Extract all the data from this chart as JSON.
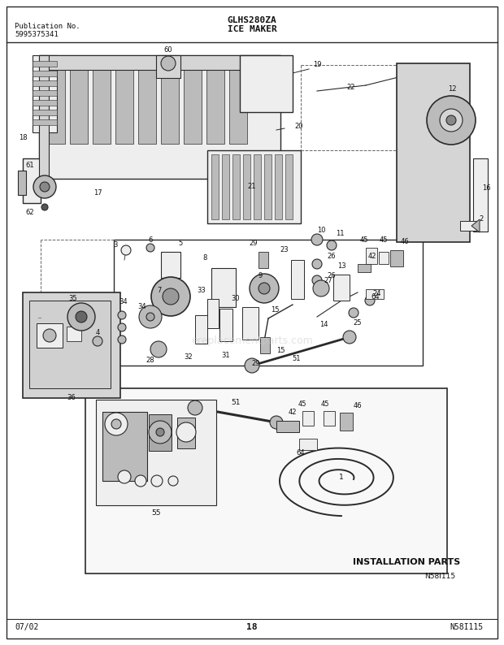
{
  "bg_color": "#ffffff",
  "border_color": "#1a1a1a",
  "text_color": "#111111",
  "pub_no_label": "Publication No.",
  "pub_no": "5995375341",
  "title_center": "GLHS280ZA",
  "title_sub": "ICE MAKER",
  "date": "07/02",
  "page": "18",
  "diagram_id": "N58I115",
  "installation_parts_label": "INSTALLATION PARTS",
  "lc": "#2a2a2a",
  "fc_light": "#eeeeee",
  "fc_mid": "#bbbbbb",
  "fc_dark": "#888888",
  "fc_gray": "#d5d5d5",
  "watermark": "ereplacementparts.com"
}
